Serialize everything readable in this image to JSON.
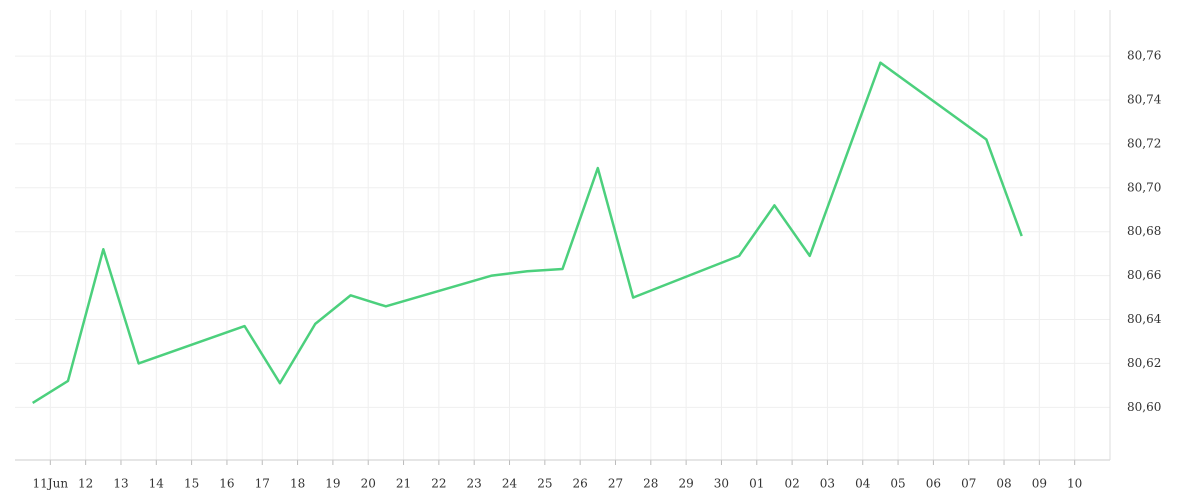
{
  "chart_data": {
    "type": "line",
    "x": [
      10.5,
      11.5,
      12.5,
      13.5,
      16.5,
      17.5,
      18.5,
      19.5,
      20.5,
      23.5,
      24.5,
      25.5,
      26.5,
      27.5,
      30.5,
      31.5,
      32.5,
      34.5,
      37.5,
      38.5
    ],
    "series": [
      {
        "color": "#4cd07d",
        "values": [
          80.602,
          80.612,
          80.672,
          80.62,
          80.637,
          80.611,
          80.638,
          80.651,
          80.646,
          80.66,
          80.662,
          80.663,
          80.709,
          80.65,
          80.669,
          80.692,
          80.669,
          80.757,
          80.722,
          80.678
        ]
      }
    ],
    "xlim": [
      10,
      41
    ],
    "xticks": [
      {
        "value": 11,
        "label": "11Jun"
      },
      12,
      13,
      14,
      15,
      16,
      17,
      18,
      19,
      20,
      21,
      22,
      23,
      24,
      25,
      26,
      27,
      28,
      29,
      30,
      {
        "value": 31,
        "label": "01"
      },
      {
        "value": 32,
        "label": "02"
      },
      {
        "value": 33,
        "label": "03"
      },
      {
        "value": 34,
        "label": "04"
      },
      {
        "value": 35,
        "label": "05"
      },
      {
        "value": 36,
        "label": "06"
      },
      {
        "value": 37,
        "label": "07"
      },
      {
        "value": 38,
        "label": "08"
      },
      {
        "value": 39,
        "label": "09"
      },
      {
        "value": 40,
        "label": "10"
      }
    ],
    "ylim": [
      80.576,
      80.781
    ],
    "yticks": [
      {
        "value": 80.6,
        "label": "80,60"
      },
      {
        "value": 80.62,
        "label": "80,62"
      },
      {
        "value": 80.64,
        "label": "80,64"
      },
      {
        "value": 80.66,
        "label": "80,66"
      },
      {
        "value": 80.68,
        "label": "80,68"
      },
      {
        "value": 80.7,
        "label": "80,70"
      },
      {
        "value": 80.72,
        "label": "80,72"
      },
      {
        "value": 80.74,
        "label": "80,74"
      },
      {
        "value": 80.76,
        "label": "80,76"
      }
    ],
    "grid": true
  }
}
